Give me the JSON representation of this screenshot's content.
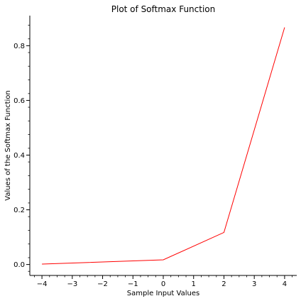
{
  "chart_data": {
    "type": "line",
    "title": "Plot of Softmax Function",
    "xlabel": "Sample Input Values",
    "ylabel": "Values of the Softmax Function",
    "x": [
      -4,
      0,
      2,
      4
    ],
    "series": [
      {
        "values": [
          0.0016,
          0.0171,
          0.1173,
          0.8668
        ],
        "color": "#ff0000"
      }
    ],
    "xlim": [
      -4.4,
      4.4
    ],
    "ylim": [
      -0.04,
      0.91
    ],
    "xticks": [
      -4,
      -3,
      -2,
      -1,
      0,
      1,
      2,
      3,
      4
    ],
    "xtick_labels": [
      "−4",
      "−3",
      "−2",
      "−1",
      "0",
      "1",
      "2",
      "3",
      "4"
    ],
    "yticks": [
      0.0,
      0.2,
      0.4,
      0.6,
      0.8
    ],
    "ytick_labels": [
      "0.0",
      "0.2",
      "0.4",
      "0.6",
      "0.8"
    ],
    "grid": false,
    "legend": "none",
    "spines": "left-bottom"
  }
}
